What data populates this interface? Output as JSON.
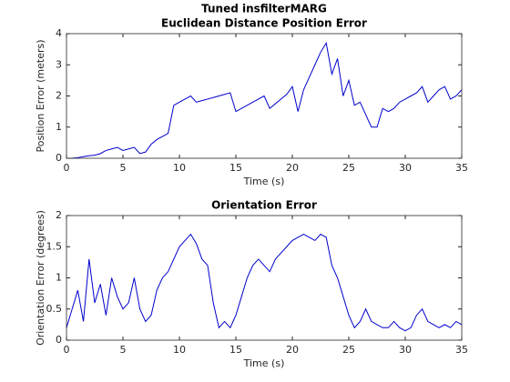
{
  "chart_data": [
    {
      "type": "line",
      "title": "Tuned insfilterMARG",
      "subtitle": "Euclidean Distance Position Error",
      "xlabel": "Time (s)",
      "ylabel": "Position Error (meters)",
      "color": "#0000cd",
      "x": [
        0,
        0.5,
        1,
        1.5,
        2,
        2.5,
        3,
        3.5,
        4,
        4.5,
        5,
        5.5,
        6,
        6.5,
        7,
        7.5,
        8,
        8.5,
        9,
        9.5,
        10,
        10.5,
        11,
        11.5,
        12,
        12.5,
        13,
        13.5,
        14,
        14.5,
        15,
        15.5,
        16,
        16.5,
        17,
        17.5,
        18,
        18.5,
        19,
        19.5,
        20,
        20.5,
        21,
        21.5,
        22,
        22.5,
        23,
        23.5,
        24,
        24.5,
        25,
        25.5,
        26,
        26.5,
        27,
        27.5,
        28,
        28.5,
        29,
        29.5,
        30,
        30.5,
        31,
        31.5,
        32,
        32.5,
        33,
        33.5,
        34,
        34.5,
        35
      ],
      "values": [
        0,
        0,
        0.02,
        0.05,
        0.08,
        0.1,
        0.15,
        0.25,
        0.3,
        0.35,
        0.25,
        0.3,
        0.35,
        0.15,
        0.2,
        0.45,
        0.6,
        0.7,
        0.8,
        1.7,
        1.8,
        1.9,
        2.0,
        1.8,
        1.85,
        1.9,
        1.95,
        2.0,
        2.05,
        2.1,
        1.5,
        1.6,
        1.7,
        1.8,
        1.9,
        2.0,
        1.6,
        1.75,
        1.9,
        2.05,
        2.3,
        1.5,
        2.2,
        2.6,
        3.0,
        3.4,
        3.7,
        2.7,
        3.2,
        2.0,
        2.5,
        1.7,
        1.8,
        1.4,
        1.0,
        1.0,
        1.6,
        1.5,
        1.6,
        1.8,
        1.9,
        2.0,
        2.1,
        2.3,
        1.8,
        2.0,
        2.2,
        2.3,
        1.9,
        2.0,
        2.2
      ],
      "xlim": [
        0,
        35
      ],
      "xticks": [
        0,
        5,
        10,
        15,
        20,
        25,
        30,
        35
      ],
      "ylim": [
        0,
        4
      ],
      "yticks": [
        0,
        1,
        2,
        3,
        4
      ]
    },
    {
      "type": "line",
      "title": "Orientation Error",
      "xlabel": "Time (s)",
      "ylabel": "Orientation Error (degrees)",
      "color": "#0000cd",
      "x": [
        0,
        0.5,
        1,
        1.5,
        2,
        2.5,
        3,
        3.5,
        4,
        4.5,
        5,
        5.5,
        6,
        6.5,
        7,
        7.5,
        8,
        8.5,
        9,
        9.5,
        10,
        10.5,
        11,
        11.5,
        12,
        12.5,
        13,
        13.5,
        14,
        14.5,
        15,
        15.5,
        16,
        16.5,
        17,
        17.5,
        18,
        18.5,
        19,
        19.5,
        20,
        20.5,
        21,
        21.5,
        22,
        22.5,
        23,
        23.5,
        24,
        24.5,
        25,
        25.5,
        26,
        26.5,
        27,
        27.5,
        28,
        28.5,
        29,
        29.5,
        30,
        30.5,
        31,
        31.5,
        32,
        32.5,
        33,
        33.5,
        34,
        34.5,
        35
      ],
      "values": [
        0.2,
        0.5,
        0.8,
        0.3,
        1.3,
        0.6,
        0.9,
        0.4,
        1.0,
        0.7,
        0.5,
        0.6,
        1.0,
        0.5,
        0.3,
        0.4,
        0.8,
        1.0,
        1.1,
        1.3,
        1.5,
        1.6,
        1.7,
        1.55,
        1.3,
        1.2,
        0.6,
        0.2,
        0.3,
        0.2,
        0.4,
        0.7,
        1.0,
        1.2,
        1.3,
        1.2,
        1.1,
        1.3,
        1.4,
        1.5,
        1.6,
        1.65,
        1.7,
        1.65,
        1.6,
        1.7,
        1.65,
        1.2,
        1.0,
        0.7,
        0.4,
        0.2,
        0.3,
        0.5,
        0.3,
        0.25,
        0.2,
        0.2,
        0.3,
        0.2,
        0.15,
        0.2,
        0.4,
        0.5,
        0.3,
        0.25,
        0.2,
        0.25,
        0.2,
        0.3,
        0.25
      ],
      "xlim": [
        0,
        35
      ],
      "xticks": [
        0,
        5,
        10,
        15,
        20,
        25,
        30,
        35
      ],
      "ylim": [
        0,
        2
      ],
      "yticks": [
        0,
        0.5,
        1,
        1.5,
        2
      ]
    }
  ]
}
